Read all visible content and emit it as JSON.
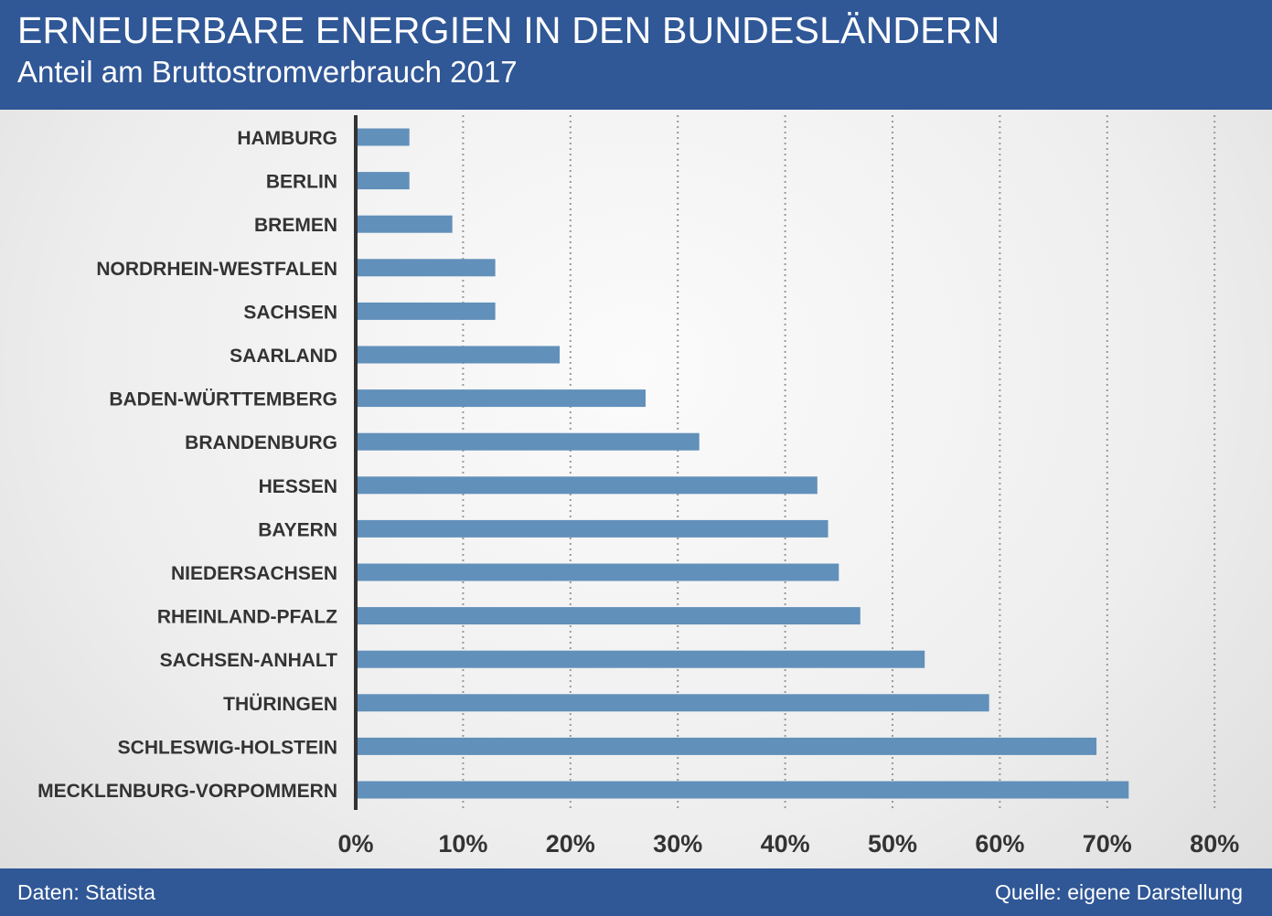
{
  "header": {
    "title": "ERNEUERBARE ENERGIEN IN DEN BUNDESLÄNDERN",
    "subtitle": "Anteil am Bruttostromverbrauch 2017"
  },
  "footer": {
    "data_source": "Daten: Statista",
    "source": "Quelle: eigene Darstellung"
  },
  "colors": {
    "header_bg": "#305796",
    "bar": "#6190ba",
    "axis": "#333333",
    "grid": "#9a9a9a",
    "label": "#333333"
  },
  "chart_data": {
    "type": "bar",
    "orientation": "horizontal",
    "title": "ERNEUERBARE ENERGIEN IN DEN BUNDESLÄNDERN",
    "subtitle": "Anteil am Bruttostromverbrauch 2017",
    "categories": [
      "HAMBURG",
      "BERLIN",
      "BREMEN",
      "NORDRHEIN-WESTFALEN",
      "SACHSEN",
      "SAARLAND",
      "BADEN-WÜRTTEMBERG",
      "BRANDENBURG",
      "HESSEN",
      "BAYERN",
      "NIEDERSACHSEN",
      "RHEINLAND-PFALZ",
      "SACHSEN-ANHALT",
      "THÜRINGEN",
      "SCHLESWIG-HOLSTEIN",
      "MECKLENBURG-VORPOMMERN"
    ],
    "values": [
      5,
      5,
      9,
      13,
      13,
      19,
      27,
      32,
      43,
      44,
      45,
      47,
      53,
      59,
      69,
      72
    ],
    "unit": "%",
    "xlim": [
      0,
      80
    ],
    "xticks": [
      0,
      10,
      20,
      30,
      40,
      50,
      60,
      70,
      80
    ],
    "xtick_labels": [
      "0%",
      "10%",
      "20%",
      "30%",
      "40%",
      "50%",
      "60%",
      "70%",
      "80%"
    ],
    "grid": true,
    "grid_style": "dotted",
    "legend": "none"
  }
}
